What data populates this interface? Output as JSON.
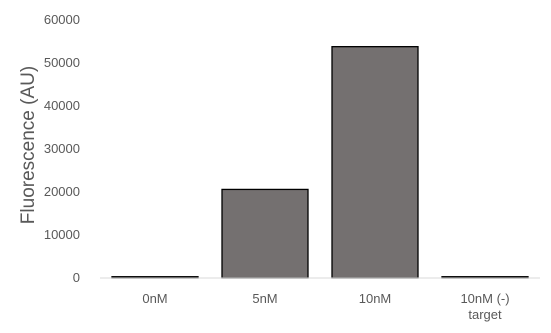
{
  "chart_data": {
    "type": "bar",
    "title": "",
    "xlabel": "",
    "ylabel": "Fluorescence (AU)",
    "ylim": [
      0,
      60000
    ],
    "yticks": [
      0,
      10000,
      20000,
      30000,
      40000,
      50000,
      60000
    ],
    "categories": [
      "0nM",
      "5nM",
      "10nM",
      "10nM (-) target"
    ],
    "category_lines": [
      [
        "0nM"
      ],
      [
        "5nM"
      ],
      [
        "10nM"
      ],
      [
        "10nM (-)",
        "target"
      ]
    ],
    "values": [
      300,
      20600,
      53800,
      300
    ],
    "grid": false,
    "colors": {
      "bar_fill": "#747070",
      "bar_stroke": "#000000",
      "axis": "#d9d9d9",
      "text": "#595959"
    }
  }
}
